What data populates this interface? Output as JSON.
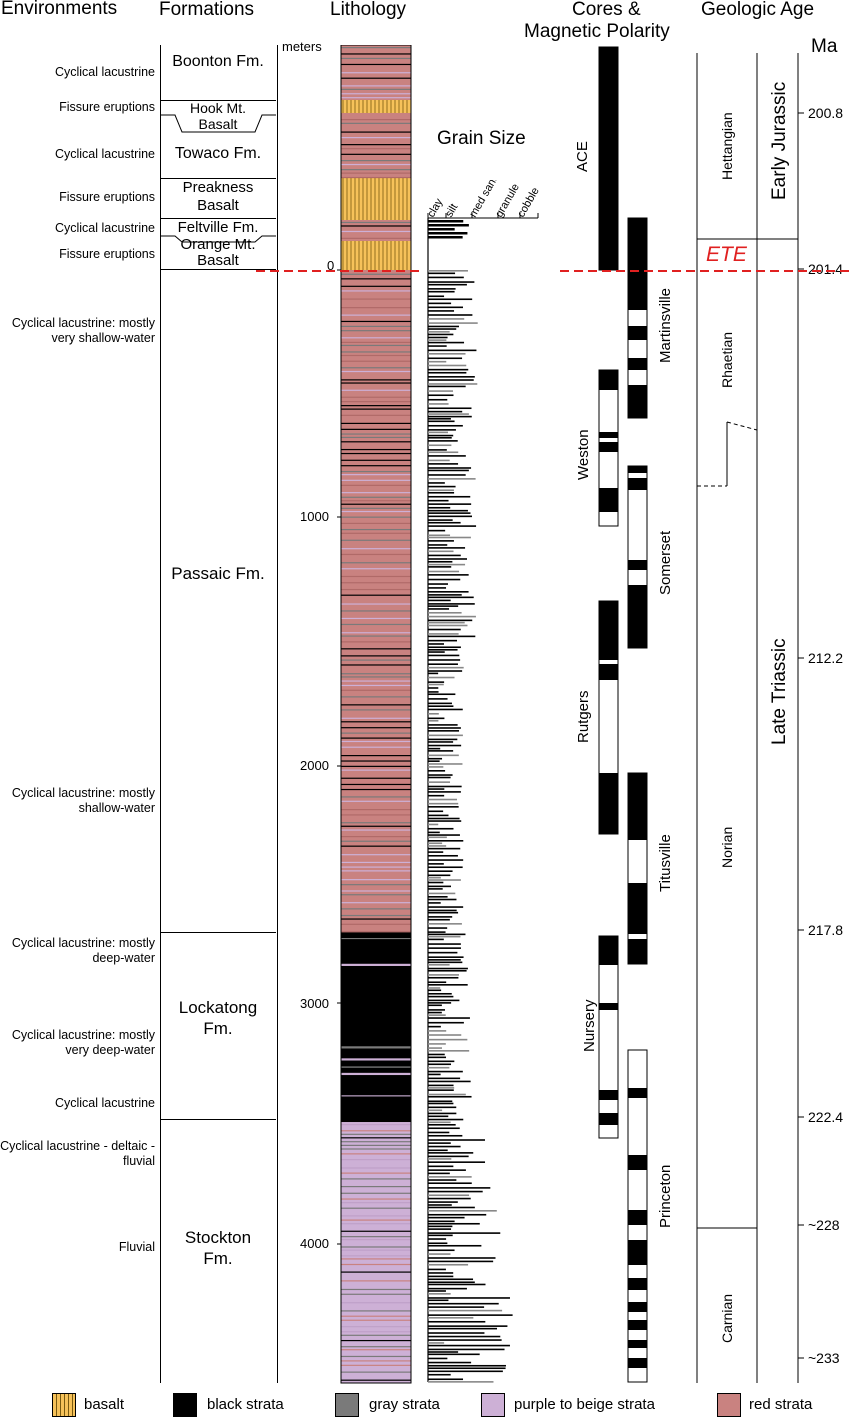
{
  "headers": {
    "environments": "Environments",
    "formations": "Formations",
    "lithology": "Lithology",
    "cores_line1": "Cores &",
    "cores_line2": "Magnetic Polarity",
    "geologic_age": "Geologic Age",
    "ma": "Ma"
  },
  "environments": [
    "Cyclical lacustrine",
    "Fissure eruptions",
    "Cyclical lacustrine",
    "Fissure eruptions",
    "Cyclical lacustrine",
    "Fissure eruptions",
    "Cyclical lacustrine: mostly very shallow-water",
    "Cyclical lacustrine: mostly shallow-water",
    "Cyclical lacustrine: mostly deep-water",
    "Cyclical lacustrine: mostly very deep-water",
    "Cyclical lacustrine",
    "Cyclical lacustrine - deltaic - fluvial",
    "Fluvial"
  ],
  "formations": [
    "Boonton Fm.",
    "Hook Mt. Basalt",
    "Towaco Fm.",
    "Preakness Basalt",
    "Feltville Fm.",
    "Orange Mt. Basalt",
    "Passaic Fm.",
    "Lockatong Fm.",
    "Stockton Fm."
  ],
  "depth_axis": {
    "unit": "meters",
    "ticks": [
      "0",
      "1000",
      "2000",
      "3000",
      "4000"
    ]
  },
  "grain_size": {
    "title": "Grain Size",
    "classes": [
      "clay",
      "silt",
      "med sand",
      "granule",
      "cobble"
    ]
  },
  "cores": [
    "ACE",
    "Martinsville",
    "Weston",
    "Somerset",
    "Rutgers",
    "Titusville",
    "Nursery",
    "Princeton"
  ],
  "event": "ETE",
  "stages": [
    "Hettangian",
    "Rhaetian",
    "Norian",
    "Carnian"
  ],
  "epochs": [
    "Early Jurassic",
    "Late Triassic"
  ],
  "ages": [
    "200.8",
    "201.4",
    "212.2",
    "217.8",
    "222.4",
    "~228",
    "~233"
  ],
  "legend": [
    {
      "label": "basalt",
      "color": "#f6c25a"
    },
    {
      "label": "black strata",
      "color": "#000000"
    },
    {
      "label": "gray strata",
      "color": "#7a7a7a"
    },
    {
      "label": "purple to beige strata",
      "color": "#cdb0d6"
    },
    {
      "label": "red strata",
      "color": "#c98280"
    }
  ]
}
